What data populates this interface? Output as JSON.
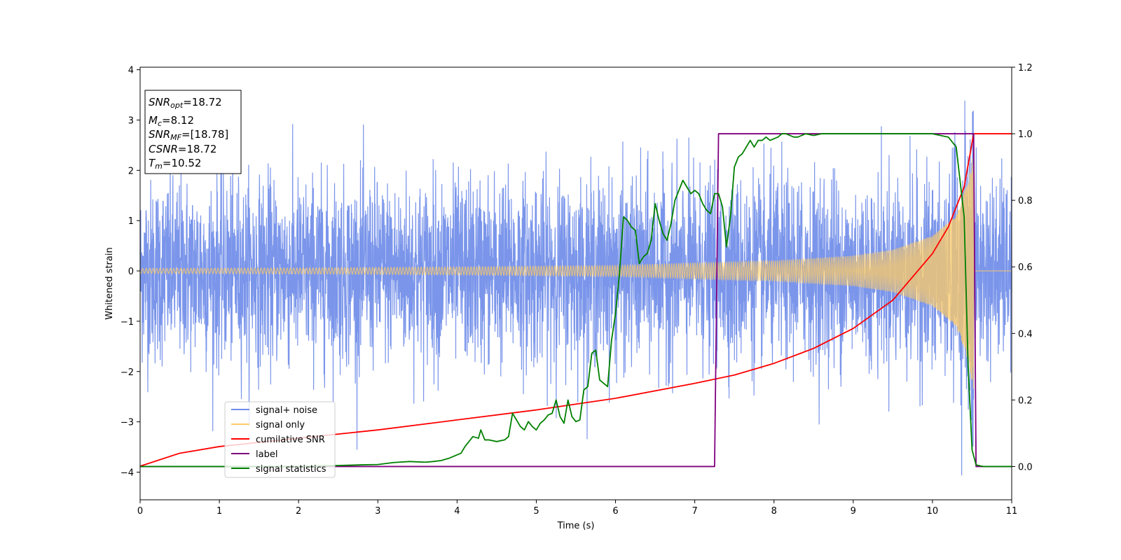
{
  "chart_data": {
    "type": "line",
    "title": "",
    "xlabel": "Time (s)",
    "ylabel": "Whitened strain",
    "y2label": "",
    "xlim": [
      0,
      11
    ],
    "ylim": [
      -4.55,
      4.05
    ],
    "y2lim": [
      -0.1,
      1.2
    ],
    "xticks": [
      "0",
      "1",
      "2",
      "3",
      "4",
      "5",
      "6",
      "7",
      "8",
      "9",
      "10",
      "11"
    ],
    "yticks": [
      "4",
      "3",
      "2",
      "1",
      "0",
      "−1",
      "−2",
      "−3",
      "−4"
    ],
    "y2ticks": [
      "1.2",
      "1.0",
      "0.8",
      "0.6",
      "0.4",
      "0.2",
      "0.0"
    ],
    "legend_position": "lower-left",
    "legend": [
      {
        "label": "signal+ noise",
        "color": "#6f8ce8"
      },
      {
        "label": "signal only",
        "color": "#ffcc66"
      },
      {
        "label": "cumilative SNR",
        "color": "#ff0000"
      },
      {
        "label": "label",
        "color": "#800080"
      },
      {
        "label": "signal statistics",
        "color": "#008000"
      }
    ],
    "info_box": {
      "snr_opt": {
        "sym": "SNR",
        "sub": "opt",
        "val": "=18.72"
      },
      "mc": {
        "sym": "M",
        "sub": "c",
        "val": "=8.12"
      },
      "snr_mf": {
        "sym": "SNR",
        "sub": "MF",
        "val": "=[18.78]"
      },
      "csnr": {
        "sym": "CSNR",
        "val": "=18.72"
      },
      "tm": {
        "sym": "T",
        "sub": "m",
        "val": "=10.52"
      }
    },
    "series": [
      {
        "name": "signal+ noise",
        "axis": "left",
        "color": "#6f8ce8",
        "description": "Gaussian whitened noise plus signal, amplitude mostly within ±2, spikes to about 3.6 and -4.1",
        "noise_sigma": 0.9,
        "range": [
          -4.15,
          3.65
        ]
      },
      {
        "name": "signal only",
        "axis": "left",
        "color": "#ffcc66",
        "description": "Chirp from t=0 to merger at t=10.52 s, amplitude rising from 0.05 to about 2.4",
        "t_start": 0,
        "t_merger": 10.52,
        "amplitude_envelope": [
          [
            0,
            0.05
          ],
          [
            2,
            0.06
          ],
          [
            4,
            0.08
          ],
          [
            6,
            0.11
          ],
          [
            8,
            0.2
          ],
          [
            9,
            0.3
          ],
          [
            9.5,
            0.42
          ],
          [
            10,
            0.7
          ],
          [
            10.3,
            1.1
          ],
          [
            10.45,
            1.8
          ],
          [
            10.52,
            2.4
          ]
        ]
      },
      {
        "name": "cumilative SNR",
        "axis": "right",
        "color": "#ff0000",
        "x": [
          0,
          0.5,
          1,
          2,
          3,
          4,
          5,
          6,
          7,
          7.5,
          8,
          8.5,
          9,
          9.5,
          10,
          10.2,
          10.4,
          10.52,
          10.53,
          11
        ],
        "y": [
          0.001,
          0.04,
          0.06,
          0.085,
          0.11,
          0.14,
          0.17,
          0.205,
          0.25,
          0.275,
          0.31,
          0.355,
          0.415,
          0.5,
          0.64,
          0.72,
          0.84,
          1.0,
          1.0,
          1.0
        ]
      },
      {
        "name": "label",
        "axis": "right",
        "color": "#800080",
        "x": [
          0,
          7.25,
          7.3,
          10.52,
          10.55,
          11
        ],
        "y": [
          0,
          0,
          1,
          1,
          0,
          0
        ]
      },
      {
        "name": "signal statistics",
        "axis": "right",
        "color": "#008000",
        "x": [
          0,
          0.5,
          1,
          1.5,
          2,
          2.5,
          2.8,
          3.0,
          3.2,
          3.4,
          3.5,
          3.6,
          3.7,
          3.8,
          3.9,
          4.0,
          4.05,
          4.1,
          4.2,
          4.27,
          4.3,
          4.35,
          4.4,
          4.5,
          4.6,
          4.65,
          4.7,
          4.75,
          4.8,
          4.85,
          4.9,
          4.95,
          5.0,
          5.05,
          5.1,
          5.15,
          5.2,
          5.25,
          5.3,
          5.35,
          5.4,
          5.45,
          5.5,
          5.55,
          5.6,
          5.65,
          5.7,
          5.75,
          5.8,
          5.85,
          5.9,
          5.95,
          6.0,
          6.05,
          6.1,
          6.15,
          6.2,
          6.25,
          6.3,
          6.35,
          6.4,
          6.45,
          6.5,
          6.55,
          6.6,
          6.65,
          6.7,
          6.75,
          6.8,
          6.85,
          6.9,
          6.95,
          7.0,
          7.05,
          7.1,
          7.15,
          7.2,
          7.25,
          7.3,
          7.35,
          7.4,
          7.45,
          7.5,
          7.55,
          7.6,
          7.65,
          7.7,
          7.75,
          7.8,
          7.85,
          7.9,
          7.95,
          8.0,
          8.05,
          8.1,
          8.15,
          8.2,
          8.25,
          8.3,
          8.4,
          8.5,
          8.6,
          8.7,
          8.8,
          9.0,
          9.2,
          9.4,
          9.6,
          9.8,
          10.0,
          10.2,
          10.3,
          10.4,
          10.45,
          10.5,
          10.55,
          10.6,
          10.65,
          10.7,
          11
        ],
        "y": [
          0,
          0.0,
          0.0,
          0.0,
          0.0,
          0.003,
          0.005,
          0.006,
          0.012,
          0.015,
          0.014,
          0.013,
          0.015,
          0.018,
          0.025,
          0.035,
          0.04,
          0.06,
          0.09,
          0.085,
          0.11,
          0.08,
          0.08,
          0.075,
          0.08,
          0.09,
          0.16,
          0.14,
          0.12,
          0.11,
          0.135,
          0.12,
          0.11,
          0.13,
          0.14,
          0.155,
          0.16,
          0.2,
          0.15,
          0.13,
          0.2,
          0.15,
          0.135,
          0.14,
          0.23,
          0.24,
          0.34,
          0.35,
          0.26,
          0.25,
          0.24,
          0.38,
          0.46,
          0.58,
          0.75,
          0.74,
          0.72,
          0.71,
          0.61,
          0.63,
          0.64,
          0.68,
          0.79,
          0.74,
          0.7,
          0.68,
          0.73,
          0.8,
          0.83,
          0.86,
          0.84,
          0.82,
          0.83,
          0.82,
          0.79,
          0.77,
          0.76,
          0.82,
          0.82,
          0.78,
          0.66,
          0.75,
          0.9,
          0.93,
          0.94,
          0.96,
          0.98,
          0.96,
          0.98,
          0.98,
          0.99,
          0.98,
          0.985,
          0.99,
          1.0,
          1.0,
          0.995,
          0.99,
          0.99,
          1.0,
          0.995,
          1.0,
          1.0,
          1.0,
          1.0,
          1.0,
          1.0,
          1.0,
          1.0,
          1.0,
          0.99,
          0.96,
          0.75,
          0.3,
          0.05,
          0.005,
          0.002,
          0.0,
          0.0,
          0.0
        ],
        "ignore": true
      }
    ]
  }
}
